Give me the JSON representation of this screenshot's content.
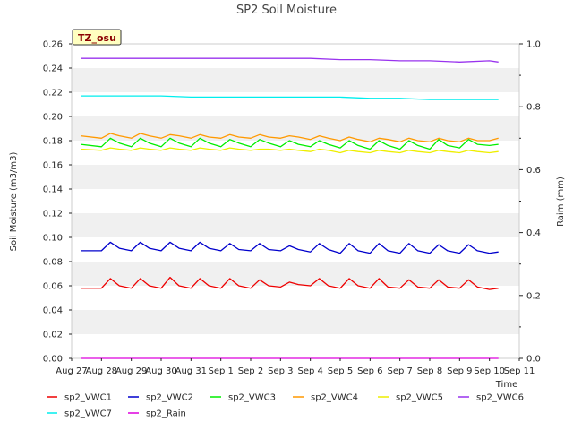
{
  "chart_data": {
    "type": "line",
    "title": "SP2 Soil Moisture",
    "site_label": "TZ_osu",
    "xlabel": "Time",
    "ylabel": "Soil Moisture (m3/m3)",
    "y2label": "Raim (mm)",
    "x_ticks": [
      "Aug 27",
      "Aug 28",
      "Aug 29",
      "Aug 30",
      "Aug 31",
      "Sep 1",
      "Sep 2",
      "Sep 3",
      "Sep 4",
      "Sep 5",
      "Sep 6",
      "Sep 7",
      "Sep 8",
      "Sep 9",
      "Sep 10",
      "Sep 11"
    ],
    "xlim": [
      0,
      15
    ],
    "ylim": [
      0,
      0.26
    ],
    "y_ticks": [
      "0.00",
      "0.02",
      "0.04",
      "0.06",
      "0.08",
      "0.10",
      "0.12",
      "0.14",
      "0.16",
      "0.18",
      "0.20",
      "0.22",
      "0.24",
      "0.26"
    ],
    "y2lim": [
      0,
      1.0
    ],
    "y2_ticks": [
      "0.0",
      "0.2",
      "0.4",
      "0.6",
      "0.8",
      "1.0"
    ],
    "grid": "horizontal bands",
    "legend_position": "bottom",
    "series": [
      {
        "name": "sp2_VWC1",
        "color": "#ee0000",
        "axis": "left",
        "x": [
          0.3,
          1.0,
          1.3,
          1.6,
          2.0,
          2.3,
          2.6,
          3.0,
          3.3,
          3.6,
          4.0,
          4.3,
          4.6,
          5.0,
          5.3,
          5.6,
          6.0,
          6.3,
          6.6,
          7.0,
          7.3,
          7.6,
          8.0,
          8.3,
          8.6,
          9.0,
          9.3,
          9.6,
          10.0,
          10.3,
          10.6,
          11.0,
          11.3,
          11.6,
          12.0,
          12.3,
          12.6,
          13.0,
          13.3,
          13.6,
          14.0,
          14.3
        ],
        "y": [
          0.058,
          0.058,
          0.066,
          0.06,
          0.058,
          0.066,
          0.06,
          0.058,
          0.067,
          0.06,
          0.058,
          0.066,
          0.06,
          0.058,
          0.066,
          0.06,
          0.058,
          0.065,
          0.06,
          0.059,
          0.063,
          0.061,
          0.06,
          0.066,
          0.06,
          0.058,
          0.066,
          0.06,
          0.058,
          0.066,
          0.059,
          0.058,
          0.065,
          0.059,
          0.058,
          0.065,
          0.059,
          0.058,
          0.065,
          0.059,
          0.057,
          0.058
        ]
      },
      {
        "name": "sp2_VWC2",
        "color": "#0000cc",
        "axis": "left",
        "x": [
          0.3,
          1.0,
          1.3,
          1.6,
          2.0,
          2.3,
          2.6,
          3.0,
          3.3,
          3.6,
          4.0,
          4.3,
          4.6,
          5.0,
          5.3,
          5.6,
          6.0,
          6.3,
          6.6,
          7.0,
          7.3,
          7.6,
          8.0,
          8.3,
          8.6,
          9.0,
          9.3,
          9.6,
          10.0,
          10.3,
          10.6,
          11.0,
          11.3,
          11.6,
          12.0,
          12.3,
          12.6,
          13.0,
          13.3,
          13.6,
          14.0,
          14.3
        ],
        "y": [
          0.089,
          0.089,
          0.096,
          0.091,
          0.089,
          0.096,
          0.091,
          0.089,
          0.096,
          0.091,
          0.089,
          0.096,
          0.091,
          0.089,
          0.095,
          0.09,
          0.089,
          0.095,
          0.09,
          0.089,
          0.093,
          0.09,
          0.088,
          0.095,
          0.09,
          0.087,
          0.095,
          0.089,
          0.087,
          0.095,
          0.089,
          0.087,
          0.095,
          0.089,
          0.087,
          0.094,
          0.089,
          0.087,
          0.094,
          0.089,
          0.087,
          0.088
        ]
      },
      {
        "name": "sp2_VWC3",
        "color": "#00ee00",
        "axis": "left",
        "x": [
          0.3,
          1.0,
          1.3,
          1.6,
          2.0,
          2.3,
          2.6,
          3.0,
          3.3,
          3.6,
          4.0,
          4.3,
          4.6,
          5.0,
          5.3,
          5.6,
          6.0,
          6.3,
          6.6,
          7.0,
          7.3,
          7.6,
          8.0,
          8.3,
          8.6,
          9.0,
          9.3,
          9.6,
          10.0,
          10.3,
          10.6,
          11.0,
          11.3,
          11.6,
          12.0,
          12.3,
          12.6,
          13.0,
          13.3,
          13.6,
          14.0,
          14.3
        ],
        "y": [
          0.177,
          0.175,
          0.182,
          0.178,
          0.175,
          0.182,
          0.178,
          0.175,
          0.182,
          0.178,
          0.175,
          0.182,
          0.178,
          0.175,
          0.181,
          0.178,
          0.175,
          0.181,
          0.178,
          0.175,
          0.18,
          0.177,
          0.175,
          0.18,
          0.177,
          0.174,
          0.18,
          0.176,
          0.173,
          0.18,
          0.176,
          0.173,
          0.18,
          0.176,
          0.173,
          0.181,
          0.176,
          0.174,
          0.181,
          0.177,
          0.176,
          0.177
        ]
      },
      {
        "name": "sp2_VWC4",
        "color": "#ff9900",
        "axis": "left",
        "x": [
          0.3,
          1.0,
          1.3,
          1.6,
          2.0,
          2.3,
          2.6,
          3.0,
          3.3,
          3.6,
          4.0,
          4.3,
          4.6,
          5.0,
          5.3,
          5.6,
          6.0,
          6.3,
          6.6,
          7.0,
          7.3,
          7.6,
          8.0,
          8.3,
          8.6,
          9.0,
          9.3,
          9.6,
          10.0,
          10.3,
          10.6,
          11.0,
          11.3,
          11.6,
          12.0,
          12.3,
          12.6,
          13.0,
          13.3,
          13.6,
          14.0,
          14.3
        ],
        "y": [
          0.184,
          0.182,
          0.186,
          0.184,
          0.182,
          0.186,
          0.184,
          0.182,
          0.185,
          0.184,
          0.182,
          0.185,
          0.183,
          0.182,
          0.185,
          0.183,
          0.182,
          0.185,
          0.183,
          0.182,
          0.184,
          0.183,
          0.181,
          0.184,
          0.182,
          0.18,
          0.183,
          0.181,
          0.179,
          0.182,
          0.181,
          0.179,
          0.182,
          0.18,
          0.179,
          0.182,
          0.18,
          0.179,
          0.182,
          0.18,
          0.18,
          0.182
        ]
      },
      {
        "name": "sp2_VWC5",
        "color": "#eeee00",
        "axis": "left",
        "x": [
          0.3,
          1.0,
          1.3,
          1.6,
          2.0,
          2.3,
          2.6,
          3.0,
          3.3,
          3.6,
          4.0,
          4.3,
          4.6,
          5.0,
          5.3,
          5.6,
          6.0,
          6.3,
          6.6,
          7.0,
          7.3,
          7.6,
          8.0,
          8.3,
          8.6,
          9.0,
          9.3,
          9.6,
          10.0,
          10.3,
          10.6,
          11.0,
          11.3,
          11.6,
          12.0,
          12.3,
          12.6,
          13.0,
          13.3,
          13.6,
          14.0,
          14.3
        ],
        "y": [
          0.173,
          0.172,
          0.174,
          0.173,
          0.172,
          0.174,
          0.173,
          0.172,
          0.174,
          0.173,
          0.172,
          0.174,
          0.173,
          0.172,
          0.174,
          0.173,
          0.172,
          0.173,
          0.173,
          0.172,
          0.173,
          0.172,
          0.171,
          0.173,
          0.172,
          0.17,
          0.172,
          0.171,
          0.17,
          0.172,
          0.171,
          0.17,
          0.172,
          0.171,
          0.17,
          0.172,
          0.171,
          0.17,
          0.172,
          0.171,
          0.17,
          0.171
        ]
      },
      {
        "name": "sp2_VWC6",
        "color": "#9933ee",
        "axis": "left",
        "x": [
          0.3,
          1,
          2,
          3,
          4,
          5,
          6,
          7,
          8,
          9,
          10,
          11,
          12,
          13,
          14,
          14.3
        ],
        "y": [
          0.248,
          0.248,
          0.248,
          0.248,
          0.248,
          0.248,
          0.248,
          0.248,
          0.248,
          0.247,
          0.247,
          0.246,
          0.246,
          0.245,
          0.246,
          0.245
        ]
      },
      {
        "name": "sp2_VWC7",
        "color": "#00eeee",
        "axis": "left",
        "x": [
          0.3,
          1,
          2,
          3,
          4,
          5,
          6,
          7,
          8,
          9,
          10,
          11,
          12,
          13,
          14,
          14.3
        ],
        "y": [
          0.217,
          0.217,
          0.217,
          0.217,
          0.216,
          0.216,
          0.216,
          0.216,
          0.216,
          0.216,
          0.215,
          0.215,
          0.214,
          0.214,
          0.214,
          0.214
        ]
      },
      {
        "name": "sp2_Rain",
        "color": "#dd00dd",
        "axis": "right",
        "x": [
          0.3,
          14.3
        ],
        "y": [
          0,
          0
        ]
      }
    ]
  }
}
